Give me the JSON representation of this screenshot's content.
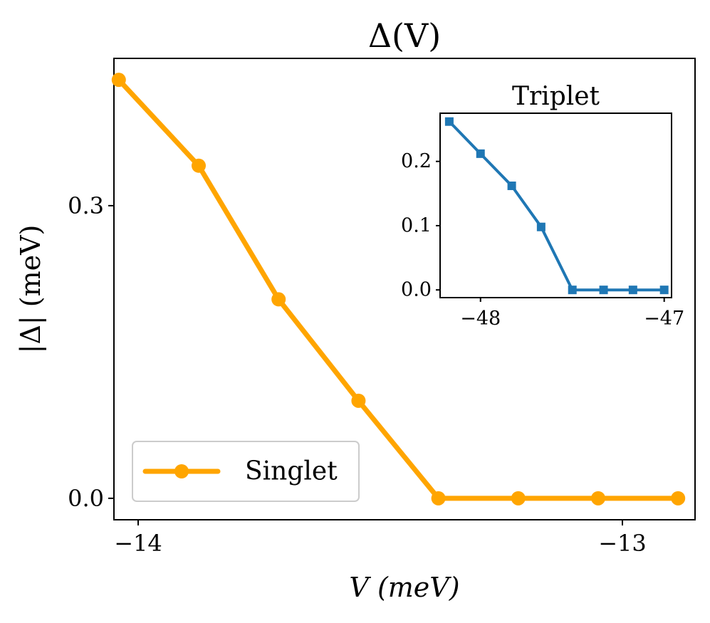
{
  "colors": {
    "singlet": "#FFA500",
    "triplet": "#1F77B4",
    "axes": "#000000",
    "legend_border": "#CCCCCC"
  },
  "chart_data": [
    {
      "id": "main",
      "type": "line",
      "title": "Δ(V)",
      "xlabel": "V (meV)",
      "ylabel": "|Δ| (meV)",
      "xlim": [
        -14.05,
        -12.85
      ],
      "ylim": [
        -0.022,
        0.451
      ],
      "xticks": [
        -14,
        -13
      ],
      "xtick_labels": [
        "−14",
        "−13"
      ],
      "yticks": [
        0.0,
        0.3
      ],
      "ytick_labels": [
        "0.0",
        "0.3"
      ],
      "legend_position": "bottom-left",
      "series": [
        {
          "name": "Singlet",
          "marker": "circle",
          "x": [
            -14.04,
            -13.875,
            -13.71,
            -13.545,
            -13.38,
            -13.215,
            -13.05,
            -12.885
          ],
          "y": [
            0.429,
            0.341,
            0.204,
            0.1,
            0.0,
            0.0,
            0.0,
            0.0
          ]
        }
      ]
    },
    {
      "id": "inset",
      "type": "line",
      "title": "Triplet",
      "xlabel": "",
      "ylabel": "",
      "xlim": [
        -48.22,
        -46.96
      ],
      "ylim": [
        -0.012,
        0.275
      ],
      "xticks": [
        -48,
        -47
      ],
      "xtick_labels": [
        "−48",
        "−47"
      ],
      "yticks": [
        0.0,
        0.1,
        0.2
      ],
      "ytick_labels": [
        "0.0",
        "0.1",
        "0.2"
      ],
      "series": [
        {
          "name": "Triplet",
          "marker": "square",
          "x": [
            -48.17,
            -48.0,
            -47.83,
            -47.67,
            -47.5,
            -47.33,
            -47.17,
            -47.0
          ],
          "y": [
            0.262,
            0.212,
            0.162,
            0.098,
            0.0,
            0.0,
            0.0,
            0.0
          ]
        }
      ]
    }
  ]
}
